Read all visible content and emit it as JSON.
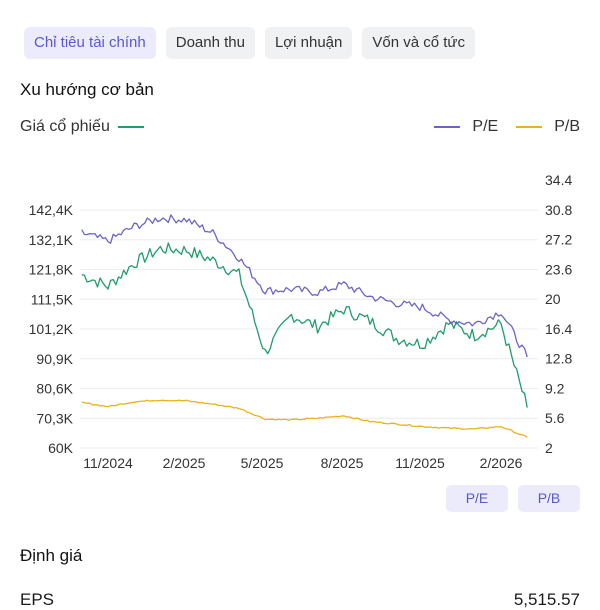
{
  "tabs": [
    {
      "label": "Chỉ tiêu tài chính",
      "active": true
    },
    {
      "label": "Doanh thu",
      "active": false
    },
    {
      "label": "Lợi nhuận",
      "active": false
    },
    {
      "label": "Vốn và cổ tức",
      "active": false
    }
  ],
  "section_title": "Xu hướng cơ bản",
  "legend": {
    "price": {
      "label": "Giá cổ phiếu",
      "color": "#1f9d6b"
    },
    "pe": {
      "label": "P/E",
      "color": "#6a64c8"
    },
    "pb": {
      "label": "P/B",
      "color": "#e9b31b"
    }
  },
  "toggles": [
    "P/E",
    "P/B"
  ],
  "valuation": {
    "title": "Định giá",
    "eps_label": "EPS",
    "eps_value": "5,515.57"
  },
  "chart_data": {
    "type": "line",
    "x_ticks": [
      "11/2024",
      "2/2025",
      "5/2025",
      "8/2025",
      "11/2025",
      "2/2026"
    ],
    "left_axis_ticks": [
      "142,4K",
      "132,1K",
      "121,8K",
      "111,5K",
      "101,2K",
      "90,9K",
      "80,6K",
      "70,3K",
      "60K"
    ],
    "left_axis_range": [
      60000,
      142400
    ],
    "right_axis_ticks": [
      "34.4",
      "30.8",
      "27.2",
      "23.6",
      "20",
      "16.4",
      "12.8",
      "9.2",
      "5.6",
      "2"
    ],
    "right_axis_range": [
      2,
      34.4
    ],
    "grid": true,
    "series": [
      {
        "name": "Giá cổ phiếu",
        "axis": "left",
        "color": "#1f9d6b",
        "x": [
          "2024-10",
          "2024-11",
          "2024-12",
          "2025-01",
          "2025-02",
          "2025-03",
          "2025-04",
          "2025-05",
          "2025-06",
          "2025-07",
          "2025-08",
          "2025-09",
          "2025-10",
          "2025-11",
          "2025-12",
          "2026-01",
          "2026-02",
          "2026-03"
        ],
        "values": [
          120000,
          116000,
          124000,
          129000,
          128500,
          125000,
          120000,
          93000,
          106000,
          102000,
          108000,
          104000,
          98000,
          96000,
          103000,
          99000,
          103000,
          74000
        ]
      },
      {
        "name": "P/E",
        "axis": "right",
        "color": "#6a64c8",
        "x": [
          "2024-10",
          "2024-11",
          "2024-12",
          "2025-01",
          "2025-02",
          "2025-03",
          "2025-04",
          "2025-05",
          "2025-06",
          "2025-07",
          "2025-08",
          "2025-09",
          "2025-10",
          "2025-11",
          "2025-12",
          "2026-01",
          "2026-02",
          "2026-03"
        ],
        "values": [
          28.0,
          27.0,
          28.8,
          29.8,
          29.6,
          28.0,
          25.0,
          21.0,
          21.2,
          20.8,
          21.8,
          20.3,
          19.5,
          19.0,
          17.5,
          17.0,
          18.5,
          13.0
        ]
      },
      {
        "name": "P/B",
        "axis": "right",
        "color": "#e9b31b",
        "x": [
          "2024-10",
          "2024-11",
          "2024-12",
          "2025-01",
          "2025-02",
          "2025-03",
          "2025-04",
          "2025-05",
          "2025-06",
          "2025-07",
          "2025-08",
          "2025-09",
          "2025-10",
          "2025-11",
          "2025-12",
          "2026-01",
          "2026-02",
          "2026-03"
        ],
        "values": [
          7.5,
          7.0,
          7.6,
          7.8,
          7.7,
          7.3,
          6.8,
          5.5,
          5.4,
          5.6,
          5.9,
          5.2,
          4.9,
          4.6,
          4.4,
          4.3,
          4.6,
          3.3
        ]
      }
    ]
  }
}
